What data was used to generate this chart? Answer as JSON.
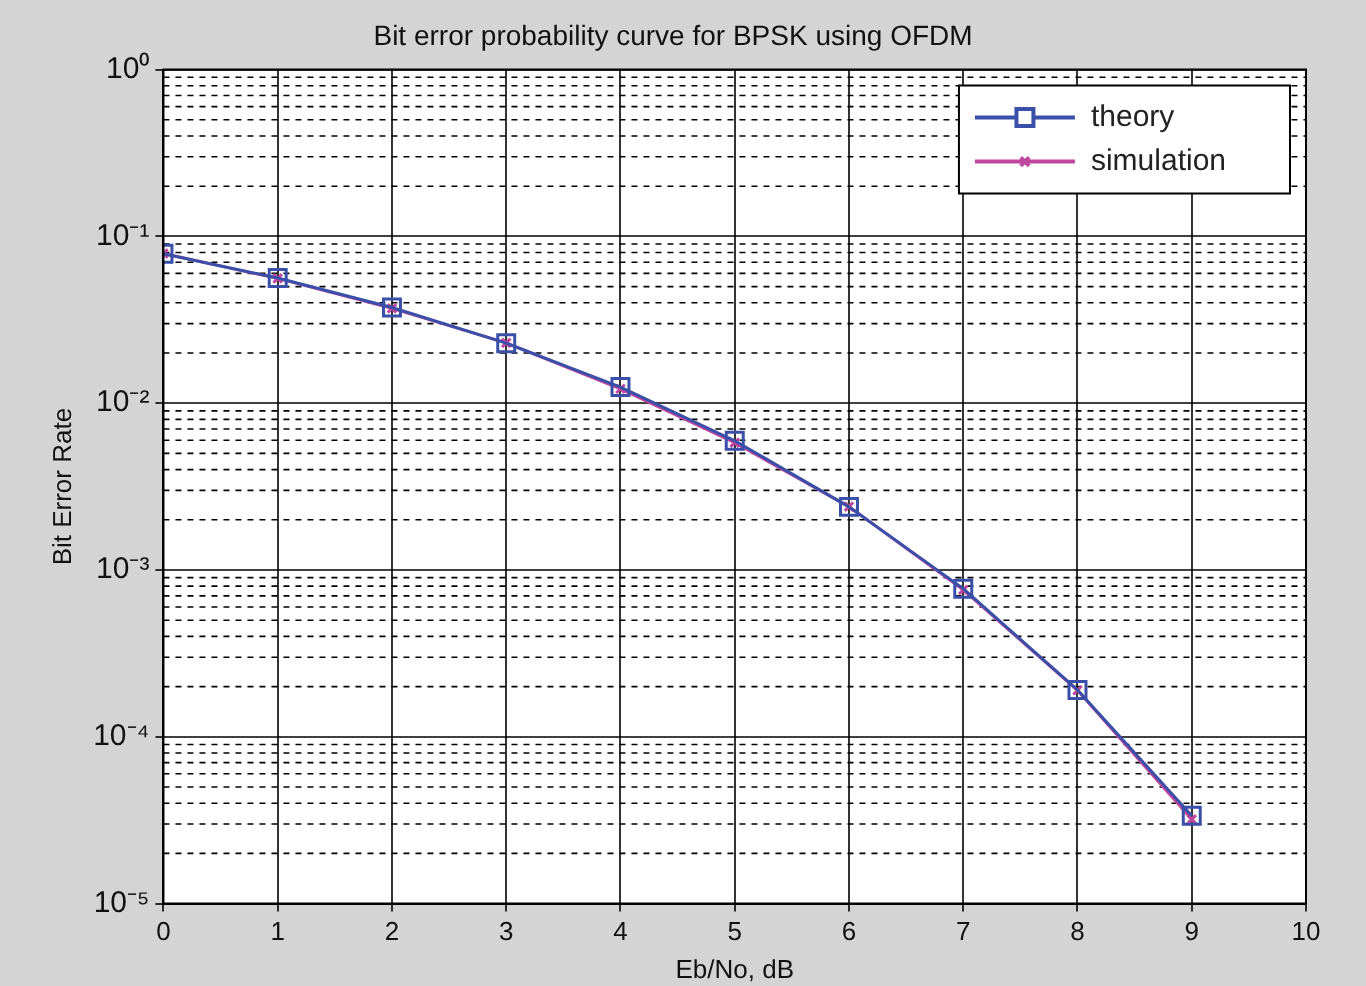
{
  "chart_data": {
    "type": "line",
    "title": "Bit error probability curve for BPSK using OFDM",
    "xlabel": "Eb/No, dB",
    "ylabel": "Bit Error Rate",
    "x": [
      0,
      1,
      2,
      3,
      4,
      5,
      6,
      7,
      8,
      9
    ],
    "series": [
      {
        "name": "theory",
        "color": "#3a4fa8",
        "marker": "square",
        "values": [
          0.0786,
          0.0563,
          0.0375,
          0.0229,
          0.0125,
          0.00595,
          0.00239,
          0.000773,
          0.000191,
          3.36e-05
        ]
      },
      {
        "name": "simulation",
        "color": "#c0479f",
        "marker": "cross",
        "values": [
          0.079,
          0.056,
          0.037,
          0.023,
          0.0122,
          0.0058,
          0.0024,
          0.00076,
          0.00019,
          3.2e-05
        ]
      }
    ],
    "log": "y",
    "xlim": [
      0,
      10
    ],
    "xticks": [
      0,
      1,
      2,
      3,
      4,
      5,
      6,
      7,
      8,
      9,
      10
    ],
    "ylim": [
      1e-05,
      1
    ],
    "yticks": [
      {
        "value": 1e-05,
        "label": "10⁻⁵"
      },
      {
        "value": 0.0001,
        "label": "10⁻⁴"
      },
      {
        "value": 0.001,
        "label": "10⁻³"
      },
      {
        "value": 0.01,
        "label": "10⁻²"
      },
      {
        "value": 0.1,
        "label": "10⁻¹"
      },
      {
        "value": 1,
        "label": "10⁰"
      }
    ],
    "grid": true,
    "legend": "top right",
    "line_style": "solid"
  }
}
